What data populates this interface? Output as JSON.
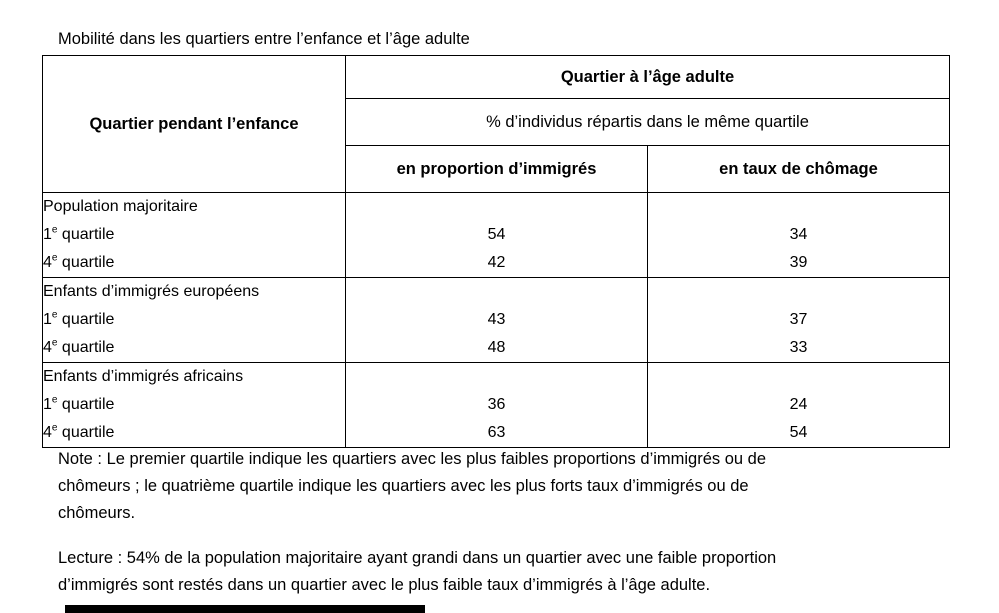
{
  "page": {
    "title": "Mobilité dans les quartiers entre l’enfance et l’âge adulte"
  },
  "colors": {
    "background": "#ffffff",
    "text": "#000000",
    "table_border": "#000000",
    "bottom_bar": "#000000"
  },
  "table": {
    "row_header": "Quartier pendant l’enfance",
    "column_group_header": "Quartier à l’âge adulte",
    "column_subtitle": "% d’individus répartis dans le même quartile",
    "columns": [
      "en proportion d’immigrés",
      "en taux de chômage"
    ],
    "groups": [
      {
        "label": "Population majoritaire",
        "rows": [
          {
            "num": "1",
            "sup": "e",
            "rest": " quartile",
            "proportion_immigres": "54",
            "taux_chomage": "34"
          },
          {
            "num": "4",
            "sup": "e",
            "rest": " quartile",
            "proportion_immigres": "42",
            "taux_chomage": "39"
          }
        ]
      },
      {
        "label": "Enfants d’immigrés européens",
        "rows": [
          {
            "num": "1",
            "sup": "e",
            "rest": " quartile",
            "proportion_immigres": "43",
            "taux_chomage": "37"
          },
          {
            "num": "4",
            "sup": "e",
            "rest": " quartile",
            "proportion_immigres": "48",
            "taux_chomage": "33"
          }
        ]
      },
      {
        "label": "Enfants d’immigrés africains",
        "rows": [
          {
            "num": "1",
            "sup": "e",
            "rest": " quartile",
            "proportion_immigres": "36",
            "taux_chomage": "24"
          },
          {
            "num": "4",
            "sup": "e",
            "rest": " quartile",
            "proportion_immigres": "63",
            "taux_chomage": "54"
          }
        ]
      }
    ]
  },
  "note": {
    "lines": [
      "Note : Le premier quartile indique les quartiers avec les plus faibles proportions d’immigrés ou de",
      "chômeurs ; le quatrième quartile indique les quartiers avec les plus forts taux d’immigrés ou de",
      "chômeurs."
    ]
  },
  "lecture": {
    "lines": [
      "Lecture : 54% de la population majoritaire ayant grandi dans un quartier avec une faible proportion",
      "d’immigrés sont restés dans un quartier avec le plus faible taux d’immigrés à l’âge adulte."
    ]
  }
}
